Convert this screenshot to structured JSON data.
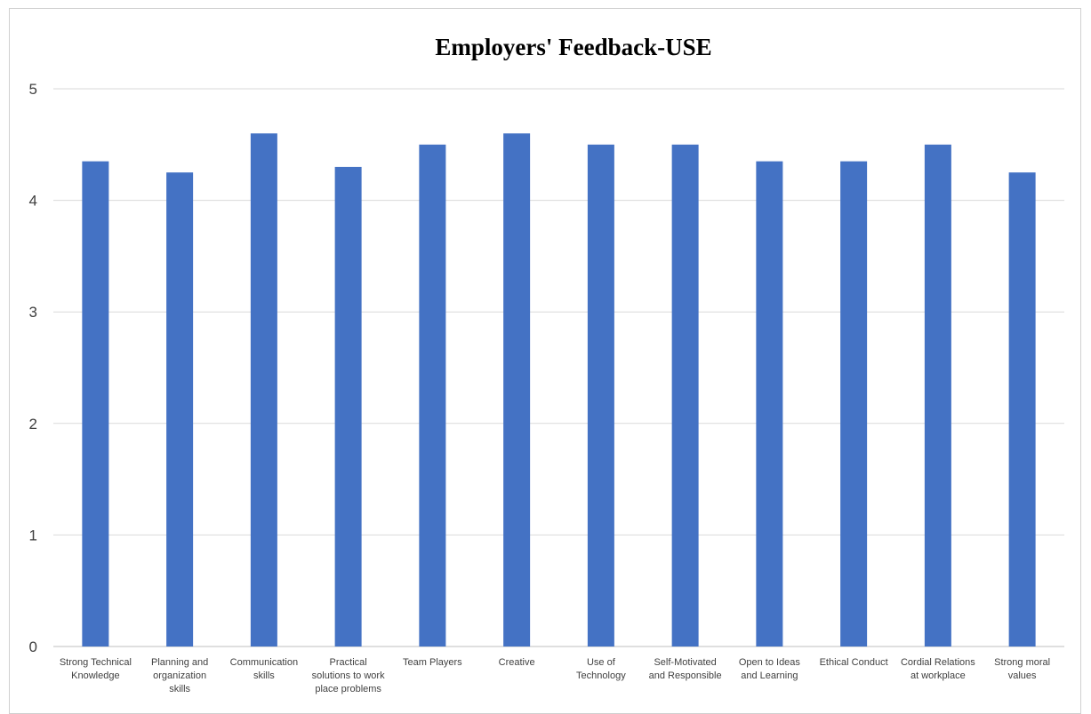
{
  "chart_data": {
    "type": "bar",
    "title": "Employers' Feedback-USE",
    "xlabel": "",
    "ylabel": "",
    "ylim": [
      0,
      5
    ],
    "yticks": [
      "0",
      "1",
      "2",
      "3",
      "4",
      "5"
    ],
    "grid": true,
    "legend": "none",
    "bar_color": "#4472C4",
    "categories": [
      [
        "Strong Technical",
        "Knowledge"
      ],
      [
        "Planning and",
        "organization",
        "skills"
      ],
      [
        "Communication",
        "skills"
      ],
      [
        "Practical",
        "solutions to work",
        "place problems"
      ],
      [
        "Team Players"
      ],
      [
        "Creative"
      ],
      [
        "Use of",
        "Technology"
      ],
      [
        "Self-Motivated",
        "and Responsible"
      ],
      [
        "Open to Ideas",
        "and Learning"
      ],
      [
        "Ethical Conduct"
      ],
      [
        "Cordial Relations",
        "at workplace"
      ],
      [
        "Strong moral",
        "values"
      ]
    ],
    "values": [
      4.35,
      4.25,
      4.6,
      4.3,
      4.5,
      4.6,
      4.5,
      4.5,
      4.35,
      4.35,
      4.5,
      4.25
    ]
  }
}
